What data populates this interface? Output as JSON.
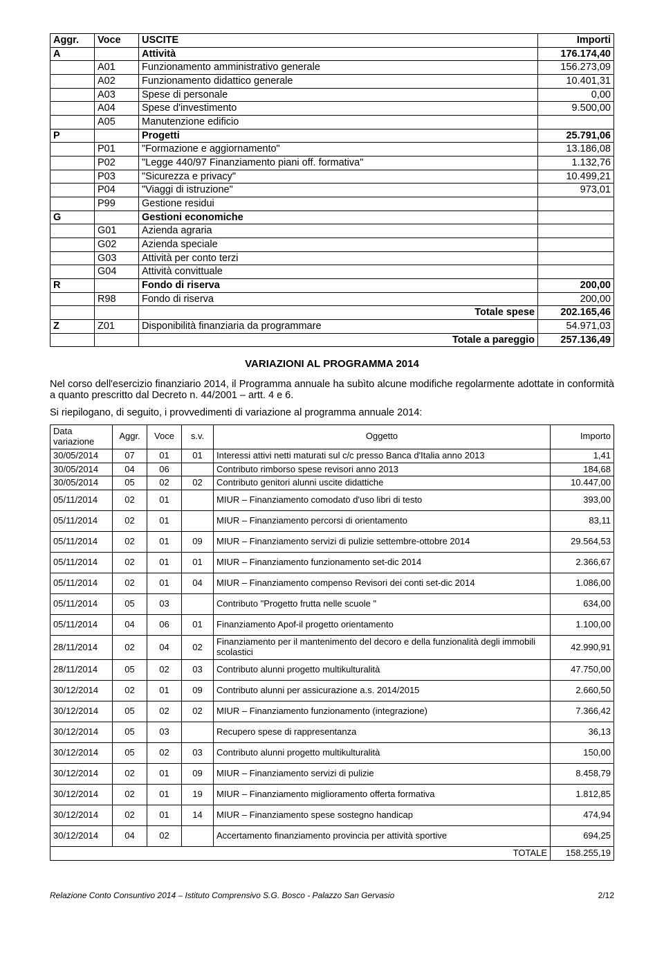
{
  "uscite": {
    "headers": [
      "Aggr.",
      "Voce",
      "USCITE",
      "Importi"
    ],
    "rows": [
      {
        "aggr": "A",
        "voce": "",
        "desc": "Attività",
        "imp": "176.174,40",
        "bold": true
      },
      {
        "aggr": "",
        "voce": "A01",
        "desc": "Funzionamento amministrativo generale",
        "imp": "156.273,09"
      },
      {
        "aggr": "",
        "voce": "A02",
        "desc": "Funzionamento didattico generale",
        "imp": "10.401,31"
      },
      {
        "aggr": "",
        "voce": "A03",
        "desc": "Spese di personale",
        "imp": "0,00"
      },
      {
        "aggr": "",
        "voce": "A04",
        "desc": "Spese d'investimento",
        "imp": "9.500,00"
      },
      {
        "aggr": "",
        "voce": "A05",
        "desc": "Manutenzione edificio",
        "imp": ""
      },
      {
        "aggr": "P",
        "voce": "",
        "desc": "Progetti",
        "imp": "25.791,06",
        "bold": true
      },
      {
        "aggr": "",
        "voce": "P01",
        "desc": "\"Formazione e aggiornamento\"",
        "imp": "13.186,08"
      },
      {
        "aggr": "",
        "voce": "P02",
        "desc": "\"Legge 440/97 Finanziamento piani off. formativa\"",
        "imp": "1.132,76"
      },
      {
        "aggr": "",
        "voce": "P03",
        "desc": "\"Sicurezza e privacy\"",
        "imp": "10.499,21"
      },
      {
        "aggr": "",
        "voce": "P04",
        "desc": "\"Viaggi di istruzione\"",
        "imp": "973,01"
      },
      {
        "aggr": "",
        "voce": "P99",
        "desc": "Gestione residui",
        "imp": ""
      },
      {
        "aggr": "G",
        "voce": "",
        "desc": "Gestioni economiche",
        "imp": "",
        "bold": true
      },
      {
        "aggr": "",
        "voce": "G01",
        "desc": "Azienda agraria",
        "imp": ""
      },
      {
        "aggr": "",
        "voce": "G02",
        "desc": "Azienda speciale",
        "imp": ""
      },
      {
        "aggr": "",
        "voce": "G03",
        "desc": "Attività per conto terzi",
        "imp": ""
      },
      {
        "aggr": "",
        "voce": "G04",
        "desc": "Attività convittuale",
        "imp": ""
      },
      {
        "aggr": "R",
        "voce": "",
        "desc": "Fondo di riserva",
        "imp": "200,00",
        "bold": true
      },
      {
        "aggr": "",
        "voce": "R98",
        "desc": "Fondo di riserva",
        "imp": "200,00"
      },
      {
        "aggr": "",
        "voce": "",
        "desc": "Totale spese",
        "imp": "202.165,46",
        "bold": true,
        "right": true
      },
      {
        "aggr": "Z",
        "voce": "Z01",
        "desc": "Disponibilità finanziaria da programmare",
        "imp": "54.971,03",
        "mixedbold": true
      },
      {
        "aggr": "",
        "voce": "",
        "desc": "Totale a pareggio",
        "imp": "257.136,49",
        "bold": true,
        "right": true
      }
    ]
  },
  "section_title": "VARIAZIONI AL PROGRAMMA 2014",
  "para1": "Nel corso dell'esercizio finanziario 2014, il Programma annuale ha subìto alcune modifiche regolarmente adottate in conformità a quanto prescritto dal Decreto n. 44/2001 – artt. 4 e 6.",
  "para2": "Si riepilogano, di seguito, i provvedimenti di variazione al programma annuale 2014:",
  "variazioni": {
    "headers": [
      "Data variazione",
      "Aggr.",
      "Voce",
      "s.v.",
      "Oggetto",
      "Importo"
    ],
    "rows": [
      {
        "d": "30/05/2014",
        "a": "07",
        "v": "01",
        "s": "01",
        "o": "Interessi attivi netti maturati sul c/c presso Banca d'Italia anno 2013",
        "i": "1,41"
      },
      {
        "d": "30/05/2014",
        "a": "04",
        "v": "06",
        "s": "",
        "o": "Contributo rimborso spese revisori anno 2013",
        "i": "184,68"
      },
      {
        "d": "30/05/2014",
        "a": "05",
        "v": "02",
        "s": "02",
        "o": "Contributo genitori alunni uscite didattiche",
        "i": "10.447,00"
      },
      {
        "d": "05/11/2014",
        "a": "02",
        "v": "01",
        "s": "",
        "o": "MIUR – Finanziamento comodato d'uso libri di testo",
        "i": "393,00",
        "tall": true
      },
      {
        "d": "05/11/2014",
        "a": "02",
        "v": "01",
        "s": "",
        "o": "MIUR – Finanziamento percorsi di orientamento",
        "i": "83,11",
        "tall": true
      },
      {
        "d": "05/11/2014",
        "a": "02",
        "v": "01",
        "s": "09",
        "o": "MIUR – Finanziamento servizi di pulizie  settembre-ottobre 2014",
        "i": "29.564,53",
        "tall": true
      },
      {
        "d": "05/11/2014",
        "a": "02",
        "v": "01",
        "s": "01",
        "o": "MIUR – Finanziamento funzionamento  set-dic 2014",
        "i": "2.366,67",
        "tall": true
      },
      {
        "d": "05/11/2014",
        "a": "02",
        "v": "01",
        "s": "04",
        "o": "MIUR – Finanziamento compenso Revisori dei conti set-dic 2014",
        "i": "1.086,00",
        "tall": true
      },
      {
        "d": "05/11/2014",
        "a": "05",
        "v": "03",
        "s": "",
        "o": "Contributo \"Progetto frutta nelle scuole \"",
        "i": "634,00",
        "tall": true
      },
      {
        "d": "05/11/2014",
        "a": "04",
        "v": "06",
        "s": "01",
        "o": "Finanziamento Apof-il progetto orientamento",
        "i": "1.100,00",
        "tall": true
      },
      {
        "d": "28/11/2014",
        "a": "02",
        "v": "04",
        "s": "02",
        "o": "Finanziamento per il mantenimento del decoro e della funzionalità degli immobili scolastici",
        "i": "42.990,91",
        "tall": true
      },
      {
        "d": "28/11/2014",
        "a": "05",
        "v": "02",
        "s": "03",
        "o": "Contributo alunni progetto multikulturalità",
        "i": "47.750,00",
        "tall": true
      },
      {
        "d": "30/12/2014",
        "a": "02",
        "v": "01",
        "s": "09",
        "o": "Contributo alunni per assicurazione a.s. 2014/2015",
        "i": "2.660,50",
        "tall": true
      },
      {
        "d": "30/12/2014",
        "a": "05",
        "v": "02",
        "s": "02",
        "o": "MIUR – Finanziamento funzionamento (integrazione)",
        "i": "7.366,42",
        "tall": true
      },
      {
        "d": "30/12/2014",
        "a": "05",
        "v": "03",
        "s": "",
        "o": "Recupero spese di rappresentanza",
        "i": "36,13",
        "tall": true
      },
      {
        "d": "30/12/2014",
        "a": "05",
        "v": "02",
        "s": "03",
        "o": "Contributo alunni progetto multikulturalità",
        "i": "150,00",
        "tall": true
      },
      {
        "d": "30/12/2014",
        "a": "02",
        "v": "01",
        "s": "09",
        "o": "MIUR – Finanziamento servizi di pulizie",
        "i": "8.458,79",
        "tall": true
      },
      {
        "d": "30/12/2014",
        "a": "02",
        "v": "01",
        "s": "19",
        "o": "MIUR – Finanziamento miglioramento offerta formativa",
        "i": "1.812,85",
        "tall": true
      },
      {
        "d": "30/12/2014",
        "a": "02",
        "v": "01",
        "s": "14",
        "o": "MIUR – Finanziamento spese sostegno handicap",
        "i": "474,94",
        "tall": true
      },
      {
        "d": "30/12/2014",
        "a": "04",
        "v": "02",
        "s": "",
        "o": "Accertamento finanziamento provincia per attività sportive",
        "i": "694,25",
        "tall": true
      }
    ],
    "total_label": "TOTALE",
    "total_value": "158.255,19"
  },
  "footer_left": "Relazione Conto Consuntivo 2014 – Istituto Comprensivo  S.G. Bosco  - Palazzo San Gervasio",
  "footer_right": "2/12"
}
